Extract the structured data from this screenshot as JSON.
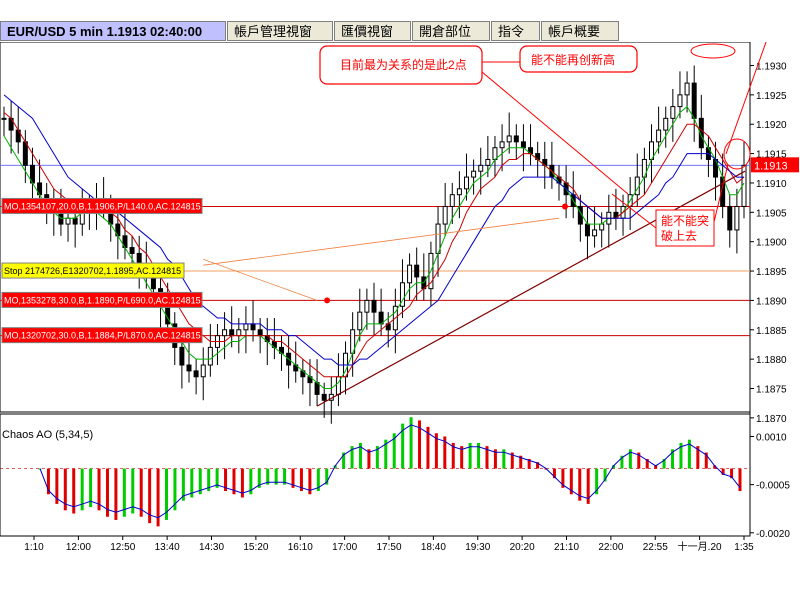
{
  "tabs": [
    {
      "label": "EUR/USD 5 min 1.1913 02:40:00",
      "active": true
    },
    {
      "label": "帳戶管理視窗",
      "active": false
    },
    {
      "label": "匯價視窗",
      "active": false
    },
    {
      "label": "開倉部位",
      "active": false
    },
    {
      "label": "指令",
      "active": false
    },
    {
      "label": "帳戶概要",
      "active": false
    }
  ],
  "colors": {
    "bull_bar": "#000000",
    "bear_bar": "#000000",
    "ma_red": "#cc0000",
    "ma_green": "#00b000",
    "ma_blue": "#0000cc",
    "ao_up": "#00cc00",
    "ao_down": "#e00000",
    "order_line": "#cc0000",
    "stop_line": "#f0a060",
    "annotation": "#ff0000",
    "price_box": "#ff0000",
    "stop_label_bg": "#ffff00",
    "order_label_bg": "#ff0000"
  },
  "annotations": {
    "note_two_points": "目前最为关系的是此2点",
    "note_new_high": "能不能再创新高",
    "note_break_up": "能不能突\n破上去"
  },
  "order_labels": [
    {
      "text": "MO,1354107,20.0,B,1.1906,P/L140.0,AC.124815",
      "price": 1.1906,
      "kind": "order"
    },
    {
      "text": "Stop 2174726,E1320702,1.1895,AC.124815",
      "price": 1.1895,
      "kind": "stop"
    },
    {
      "text": "MO,1353278,30.0,B,1.1890,P/L690.0,AC.124815",
      "price": 1.189,
      "kind": "order"
    },
    {
      "text": "MO,1320702,30.0,B,1.1884,P/L870.0,AC.124815",
      "price": 1.1884,
      "kind": "order"
    }
  ],
  "current_price_label": "1.1913",
  "chart_data": [
    {
      "type": "candlestick",
      "title": "EUR/USD 5 min",
      "current_price": 1.1913,
      "x_ticks": [
        "1:10",
        "12:00",
        "12:50",
        "13:40",
        "14:30",
        "15:20",
        "16:10",
        "17:00",
        "17:50",
        "18:40",
        "19:30",
        "20:20",
        "21:10",
        "22:00",
        "22:55",
        "十一月.20",
        "1:35"
      ],
      "y_ticks": [
        1.193,
        1.1925,
        1.192,
        1.1915,
        1.191,
        1.1905,
        1.19,
        1.1895,
        1.189,
        1.1885,
        1.188,
        1.1875,
        1.187
      ],
      "ylim": [
        1.1871,
        1.1934
      ],
      "close_series": [
        1.1921,
        1.1919,
        1.1917,
        1.1913,
        1.191,
        1.1908,
        1.1906,
        1.1905,
        1.1903,
        1.1904,
        1.1903,
        1.1905,
        1.1906,
        1.1907,
        1.1906,
        1.1903,
        1.1901,
        1.1899,
        1.1898,
        1.1896,
        1.1894,
        1.1892,
        1.1889,
        1.1886,
        1.1882,
        1.1879,
        1.1878,
        1.1877,
        1.1879,
        1.1882,
        1.1884,
        1.1885,
        1.1884,
        1.1885,
        1.1886,
        1.1885,
        1.1884,
        1.1883,
        1.1882,
        1.1881,
        1.1879,
        1.1878,
        1.1877,
        1.1876,
        1.1874,
        1.1873,
        1.1874,
        1.1877,
        1.1881,
        1.1885,
        1.1888,
        1.189,
        1.1888,
        1.1886,
        1.1885,
        1.1889,
        1.1893,
        1.1896,
        1.1894,
        1.1892,
        1.1898,
        1.1903,
        1.1906,
        1.1908,
        1.1909,
        1.1911,
        1.1912,
        1.1913,
        1.1914,
        1.1916,
        1.1917,
        1.1918,
        1.1917,
        1.1916,
        1.1915,
        1.1914,
        1.1913,
        1.1911,
        1.191,
        1.1908,
        1.1906,
        1.1903,
        1.1901,
        1.1902,
        1.1903,
        1.1905,
        1.1904,
        1.1906,
        1.1908,
        1.1911,
        1.1914,
        1.1917,
        1.1919,
        1.1921,
        1.1923,
        1.1925,
        1.1927,
        1.1921,
        1.1916,
        1.1914,
        1.1911,
        1.1906,
        1.1902,
        1.1906,
        1.1913
      ],
      "moving_averages": [
        {
          "color_key": "ma_green",
          "values": [
            1.1918,
            1.1916,
            1.1914,
            1.1912,
            1.191,
            1.1908,
            1.1906,
            1.1905,
            1.1904,
            1.1904,
            1.1904,
            1.1905,
            1.1905,
            1.1905,
            1.1904,
            1.1903,
            1.1901,
            1.1899,
            1.1897,
            1.1895,
            1.1893,
            1.1891,
            1.1889,
            1.1887,
            1.1885,
            1.1883,
            1.1881,
            1.188,
            1.188,
            1.188,
            1.1881,
            1.1882,
            1.1883,
            1.1883,
            1.1884,
            1.1884,
            1.1884,
            1.1883,
            1.1882,
            1.1881,
            1.188,
            1.1879,
            1.1878,
            1.1877,
            1.1876,
            1.1875,
            1.1875,
            1.1876,
            1.1878,
            1.1881,
            1.1884,
            1.1886,
            1.1886,
            1.1886,
            1.1887,
            1.1888,
            1.189,
            1.1892,
            1.1893,
            1.1893,
            1.1895,
            1.1898,
            1.1901,
            1.1904,
            1.1906,
            1.1908,
            1.191,
            1.1911,
            1.1912,
            1.1914,
            1.1915,
            1.1916,
            1.1916,
            1.1916,
            1.1915,
            1.1914,
            1.1913,
            1.1912,
            1.191,
            1.1909,
            1.1907,
            1.1905,
            1.1903,
            1.1903,
            1.1903,
            1.1904,
            1.1904,
            1.1905,
            1.1907,
            1.1909,
            1.1911,
            1.1914,
            1.1916,
            1.1918,
            1.192,
            1.1922,
            1.1923,
            1.1921,
            1.1918,
            1.1916,
            1.1914,
            1.1911,
            1.1908,
            1.1908,
            1.191
          ]
        },
        {
          "color_key": "ma_red",
          "values": [
            1.1922,
            1.1921,
            1.1919,
            1.1917,
            1.1915,
            1.1913,
            1.1911,
            1.1909,
            1.1908,
            1.1907,
            1.1906,
            1.1906,
            1.1906,
            1.1906,
            1.1905,
            1.1905,
            1.1904,
            1.1902,
            1.1901,
            1.1899,
            1.1898,
            1.1896,
            1.1894,
            1.1892,
            1.189,
            1.1888,
            1.1886,
            1.1885,
            1.1884,
            1.1883,
            1.1883,
            1.1883,
            1.1884,
            1.1884,
            1.1884,
            1.1884,
            1.1884,
            1.1884,
            1.1883,
            1.1883,
            1.1882,
            1.1881,
            1.188,
            1.1879,
            1.1878,
            1.1877,
            1.1877,
            1.1877,
            1.1877,
            1.1879,
            1.1881,
            1.1883,
            1.1884,
            1.1885,
            1.1886,
            1.1887,
            1.1888,
            1.1889,
            1.1891,
            1.1892,
            1.1893,
            1.1895,
            1.1897,
            1.19,
            1.1902,
            1.1905,
            1.1907,
            1.1909,
            1.191,
            1.1911,
            1.1913,
            1.1914,
            1.1914,
            1.1915,
            1.1915,
            1.1914,
            1.1913,
            1.1912,
            1.1911,
            1.191,
            1.1909,
            1.1907,
            1.1906,
            1.1905,
            1.1904,
            1.1904,
            1.1904,
            1.1905,
            1.1906,
            1.1907,
            1.1908,
            1.191,
            1.1912,
            1.1914,
            1.1916,
            1.1918,
            1.192,
            1.192,
            1.1919,
            1.1918,
            1.1916,
            1.1914,
            1.1912,
            1.191,
            1.1911
          ]
        },
        {
          "color_key": "ma_blue",
          "values": [
            1.1925,
            1.1924,
            1.1923,
            1.1922,
            1.1921,
            1.1919,
            1.1917,
            1.1915,
            1.1913,
            1.1911,
            1.191,
            1.1909,
            1.1908,
            1.1907,
            1.1906,
            1.1906,
            1.1905,
            1.1904,
            1.1903,
            1.1902,
            1.1901,
            1.19,
            1.1899,
            1.1897,
            1.1896,
            1.1894,
            1.1892,
            1.189,
            1.1889,
            1.1888,
            1.1887,
            1.1887,
            1.1886,
            1.1886,
            1.1886,
            1.1886,
            1.1886,
            1.1885,
            1.1885,
            1.1885,
            1.1884,
            1.1884,
            1.1883,
            1.1882,
            1.1881,
            1.188,
            1.188,
            1.1879,
            1.1879,
            1.1879,
            1.188,
            1.188,
            1.1881,
            1.1882,
            1.1883,
            1.1884,
            1.1885,
            1.1886,
            1.1887,
            1.1888,
            1.1889,
            1.189,
            1.1892,
            1.1894,
            1.1896,
            1.1898,
            1.19,
            1.1902,
            1.1904,
            1.1906,
            1.1907,
            1.1909,
            1.191,
            1.1911,
            1.1911,
            1.1911,
            1.1911,
            1.1911,
            1.191,
            1.1909,
            1.1908,
            1.1907,
            1.1906,
            1.1905,
            1.1904,
            1.1904,
            1.1904,
            1.1904,
            1.1904,
            1.1905,
            1.1906,
            1.1907,
            1.1908,
            1.191,
            1.1911,
            1.1913,
            1.1915,
            1.1915,
            1.1915,
            1.1915,
            1.1914,
            1.1913,
            1.1912,
            1.1911,
            1.1911
          ]
        }
      ]
    },
    {
      "type": "bar",
      "title": "Chaos AO (5,34,5)",
      "y_ticks": [
        0.001,
        -0.0005,
        -0.002
      ],
      "ylim": [
        -0.0021,
        0.0017
      ],
      "values": [
        0.0,
        -0.0008,
        -0.0011,
        -0.0013,
        -0.0014,
        -0.0013,
        -0.0012,
        -0.0013,
        -0.0015,
        -0.0016,
        -0.0015,
        -0.0014,
        -0.0015,
        -0.0017,
        -0.0018,
        -0.0016,
        -0.0013,
        -0.001,
        -0.0009,
        -0.0008,
        -0.0007,
        -0.0006,
        -0.0007,
        -0.0008,
        -0.0009,
        -0.0008,
        -0.0006,
        -0.0005,
        -0.0005,
        -0.0005,
        -0.0006,
        -0.0007,
        -0.0008,
        -0.0007,
        -0.0005,
        0.0001,
        0.0005,
        0.0007,
        0.0008,
        0.0006,
        0.0007,
        0.0009,
        0.0011,
        0.0014,
        0.0016,
        0.0015,
        0.0013,
        0.0011,
        0.001,
        0.0008,
        0.0007,
        0.0008,
        0.0008,
        0.0007,
        0.0006,
        0.0006,
        0.0005,
        0.0004,
        0.0003,
        0.0002,
        0.0,
        -0.0003,
        -0.0006,
        -0.0008,
        -0.001,
        -0.0011,
        -0.0008,
        -0.0004,
        0.0001,
        0.0004,
        0.0006,
        0.0005,
        0.0003,
        0.0001,
        0.0003,
        0.0006,
        0.0008,
        0.0009,
        0.0007,
        0.0005,
        0.0001,
        -0.0002,
        -0.0003,
        -0.0007
      ],
      "up_color_key": "ao_up",
      "down_color_key": "ao_down"
    }
  ]
}
